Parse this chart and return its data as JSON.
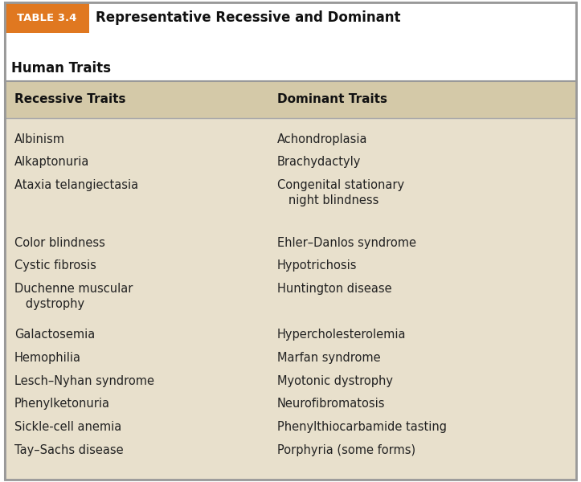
{
  "table_label": "TABLE 3.4",
  "title_line1": "Representative Recessive and Dominant",
  "title_line2": "Human Traits",
  "body_bg": "#e8e0cc",
  "header_bg": "#d4c9a8",
  "title_bg": "#ffffff",
  "table_label_bg": "#e07820",
  "table_label_color": "#ffffff",
  "title_color": "#111111",
  "col1_header": "Recessive Traits",
  "col2_header": "Dominant Traits",
  "col1_items": [
    "Albinism",
    "Alkaptonuria",
    "Ataxia telangiectasia",
    "",
    "Color blindness",
    "Cystic fibrosis",
    "Duchenne muscular\n   dystrophy",
    "Galactosemia",
    "Hemophilia",
    "Lesch–Nyhan syndrome",
    "Phenylketonuria",
    "Sickle-cell anemia",
    "Tay–Sachs disease"
  ],
  "col2_items": [
    "Achondroplasia",
    "Brachydactyly",
    "Congenital stationary\n   night blindness",
    "",
    "Ehler–Danlos syndrome",
    "Hypotrichosis",
    "Huntington disease",
    "Hypercholesterolemia",
    "Marfan syndrome",
    "Myotonic dystrophy",
    "Neurofibromatosis",
    "Phenylthiocarbamide tasting",
    "Porphyria (some forms)"
  ],
  "outer_border_color": "#999999",
  "divider_color": "#aaaaaa",
  "text_color": "#222222",
  "header_text_color": "#111111",
  "col_split": 0.46
}
